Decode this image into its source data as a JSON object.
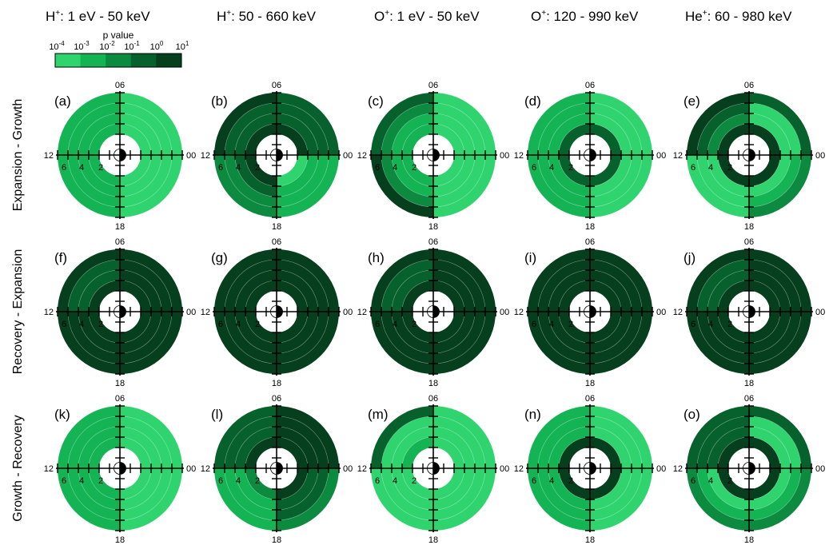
{
  "chart_data": {
    "type": "heatmap",
    "subtype": "polar-sector-grid",
    "columns": [
      {
        "species": "H",
        "charge": "+",
        "energy": ":  1 eV - 50 keV"
      },
      {
        "species": "H",
        "charge": "+",
        "energy": ":  50 - 660 keV"
      },
      {
        "species": "O",
        "charge": "+",
        "energy": ": 1 eV - 50 keV"
      },
      {
        "species": "O",
        "charge": "+",
        "energy": ":  120 - 990 keV"
      },
      {
        "species": "He",
        "charge": "+",
        "energy": ":  60 - 980 keV"
      }
    ],
    "rows": [
      "Expansion - Growth",
      "Recovery - Expansion",
      "Growth - Recovery"
    ],
    "colorbar": {
      "title": "p value",
      "scale": "log",
      "range": [
        0.0001,
        10
      ],
      "ticks": [
        {
          "base": "10",
          "exp": "-4"
        },
        {
          "base": "10",
          "exp": "-3"
        },
        {
          "base": "10",
          "exp": "-2"
        },
        {
          "base": "10",
          "exp": "-1"
        },
        {
          "base": "10",
          "exp": "0"
        },
        {
          "base": "10",
          "exp": "1"
        }
      ],
      "colors": [
        "#2fd46e",
        "#14b455",
        "#0c8a40",
        "#07612c",
        "#053f1d",
        "#000000"
      ]
    },
    "mlt_labels": {
      "top": "06",
      "left": "12",
      "right": "00",
      "bottom": "18"
    },
    "radial_labels": [
      "6",
      "4",
      "2"
    ],
    "rings_re": [
      [
        2,
        3
      ],
      [
        3,
        4
      ],
      [
        4,
        5
      ],
      [
        5,
        6
      ]
    ],
    "sector_order": [
      "06-00 (dawn-midnight)",
      "12-06 (noon-dawn)",
      "18-12 (dusk-noon)",
      "00-18 (midnight-dusk)"
    ],
    "panels": [
      {
        "label": "(a)",
        "p_log10": [
          [
            -4,
            -4,
            -4,
            -4
          ],
          [
            -3,
            -3,
            -3,
            -3
          ],
          [
            -3,
            -3,
            -3,
            -3
          ],
          [
            -4,
            -4,
            -4,
            -4
          ]
        ]
      },
      {
        "label": "(b)",
        "p_log10": [
          [
            0,
            -1,
            -1,
            -1
          ],
          [
            0,
            -1,
            -1,
            0
          ],
          [
            0,
            -1,
            -2,
            -2
          ],
          [
            -4,
            -3,
            -3,
            -3
          ]
        ]
      },
      {
        "label": "(c)",
        "p_log10": [
          [
            -4,
            -4,
            -4,
            -4
          ],
          [
            -3,
            -3,
            -2,
            -1
          ],
          [
            -3,
            -3,
            -2,
            0
          ],
          [
            -4,
            -4,
            -4,
            -4
          ]
        ]
      },
      {
        "label": "(d)",
        "p_log10": [
          [
            -1,
            -4,
            -4,
            -4
          ],
          [
            -1,
            -3,
            -3,
            -3
          ],
          [
            -1,
            -3,
            -3,
            -3
          ],
          [
            -1,
            -4,
            -4,
            -4
          ]
        ]
      },
      {
        "label": "(e)",
        "p_log10": [
          [
            0,
            -4,
            -4,
            -1
          ],
          [
            0,
            -2,
            -1,
            0
          ],
          [
            0,
            -4,
            -4,
            -4
          ],
          [
            0,
            -4,
            -3,
            -2
          ]
        ]
      },
      {
        "label": "(f)",
        "p_log10": [
          [
            0,
            0,
            0,
            0
          ],
          [
            0,
            -1,
            -1,
            0
          ],
          [
            0,
            0,
            0,
            0
          ],
          [
            0,
            0,
            0,
            0
          ]
        ]
      },
      {
        "label": "(g)",
        "p_log10": [
          [
            0,
            0,
            0,
            0
          ],
          [
            0,
            0,
            0,
            0
          ],
          [
            0,
            0,
            0,
            0
          ],
          [
            0,
            0,
            0,
            0
          ]
        ]
      },
      {
        "label": "(h)",
        "p_log10": [
          [
            0,
            0,
            0,
            0
          ],
          [
            0,
            -1,
            -1,
            0
          ],
          [
            0,
            0,
            0,
            0
          ],
          [
            0,
            0,
            0,
            0
          ]
        ]
      },
      {
        "label": "(i)",
        "p_log10": [
          [
            0,
            0,
            0,
            0
          ],
          [
            0,
            0,
            0,
            0
          ],
          [
            0,
            0,
            0,
            0
          ],
          [
            0,
            0,
            0,
            0
          ]
        ]
      },
      {
        "label": "(j)",
        "p_log10": [
          [
            0,
            0,
            0,
            0
          ],
          [
            0,
            -1,
            -1,
            0
          ],
          [
            0,
            0,
            0,
            0
          ],
          [
            0,
            0,
            0,
            0
          ]
        ]
      },
      {
        "label": "(k)",
        "p_log10": [
          [
            -4,
            -4,
            -4,
            -4
          ],
          [
            -3,
            -3,
            -3,
            -3
          ],
          [
            -3,
            -3,
            -3,
            -3
          ],
          [
            -4,
            -4,
            -4,
            -4
          ]
        ]
      },
      {
        "label": "(l)",
        "p_log10": [
          [
            0,
            0,
            0,
            0
          ],
          [
            0,
            -1,
            -1,
            -1
          ],
          [
            -2,
            -3,
            -3,
            -3
          ],
          [
            0,
            -1,
            -1,
            -2
          ]
        ]
      },
      {
        "label": "(m)",
        "p_log10": [
          [
            -4,
            -4,
            -4,
            -4
          ],
          [
            -3,
            -4,
            -4,
            -1
          ],
          [
            -4,
            -4,
            -4,
            -4
          ],
          [
            -4,
            -4,
            -4,
            -4
          ]
        ]
      },
      {
        "label": "(n)",
        "p_log10": [
          [
            0,
            -4,
            -4,
            -4
          ],
          [
            0,
            -3,
            -3,
            -3
          ],
          [
            0,
            -3,
            -3,
            -3
          ],
          [
            0,
            -4,
            -4,
            -4
          ]
        ]
      },
      {
        "label": "(o)",
        "p_log10": [
          [
            0,
            -4,
            -4,
            -1
          ],
          [
            0,
            -1,
            -1,
            -1
          ],
          [
            0,
            -4,
            -3,
            -2
          ],
          [
            0,
            -4,
            -3,
            -2
          ]
        ]
      }
    ]
  }
}
